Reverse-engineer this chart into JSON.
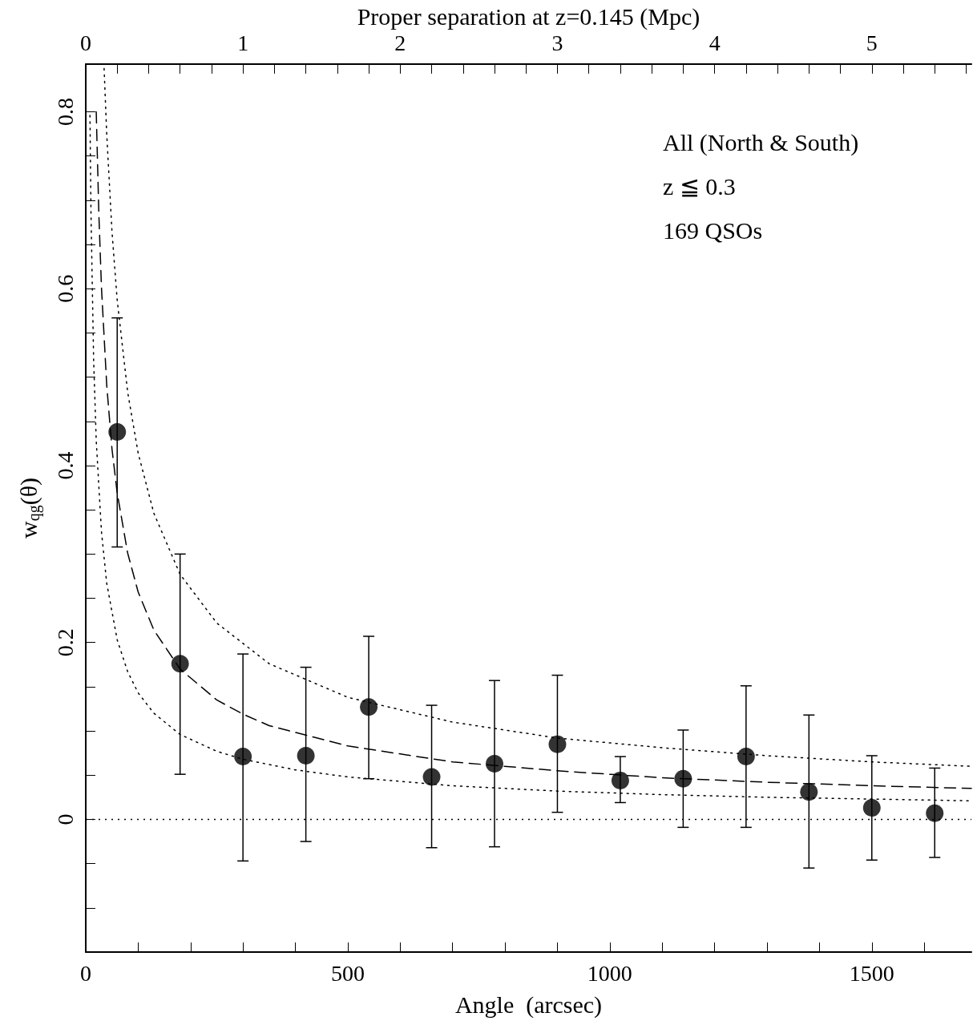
{
  "chart_data": {
    "type": "scatter",
    "xlabel": "Angle  (arcsec)",
    "ylabel": "w$_{qg}$(θ)",
    "x2label": "Proper separation at z=0.145 (Mpc)",
    "xlim": [
      0,
      1690
    ],
    "ylim": [
      -0.15,
      0.854
    ],
    "x2lim": [
      0,
      5.633
    ],
    "xticks": [
      0,
      {
        "value": 100,
        "label": null
      },
      {
        "value": 200,
        "label": null
      },
      {
        "value": 300,
        "label": null
      },
      {
        "value": 400,
        "label": null
      },
      500,
      {
        "value": 600,
        "label": null
      },
      {
        "value": 700,
        "label": null
      },
      {
        "value": 800,
        "label": null
      },
      {
        "value": 900,
        "label": null
      },
      1000,
      {
        "value": 1100,
        "label": null
      },
      {
        "value": 1200,
        "label": null
      },
      {
        "value": 1300,
        "label": null
      },
      {
        "value": 1400,
        "label": null
      },
      1500,
      {
        "value": 1600,
        "label": null
      }
    ],
    "x2ticks": [
      0,
      {
        "value": 0.2,
        "label": null
      },
      {
        "value": 0.4,
        "label": null
      },
      {
        "value": 0.6,
        "label": null
      },
      {
        "value": 0.8,
        "label": null
      },
      1,
      {
        "value": 1.2,
        "label": null
      },
      {
        "value": 1.4,
        "label": null
      },
      {
        "value": 1.6,
        "label": null
      },
      {
        "value": 1.8,
        "label": null
      },
      2,
      {
        "value": 2.2,
        "label": null
      },
      {
        "value": 2.4,
        "label": null
      },
      {
        "value": 2.6,
        "label": null
      },
      {
        "value": 2.8,
        "label": null
      },
      3,
      {
        "value": 3.2,
        "label": null
      },
      {
        "value": 3.4,
        "label": null
      },
      {
        "value": 3.6,
        "label": null
      },
      {
        "value": 3.8,
        "label": null
      },
      4,
      {
        "value": 4.2,
        "label": null
      },
      {
        "value": 4.4,
        "label": null
      },
      {
        "value": 4.6,
        "label": null
      },
      {
        "value": 4.8,
        "label": null
      },
      5,
      {
        "value": 5.2,
        "label": null
      },
      {
        "value": 5.4,
        "label": null
      },
      {
        "value": 5.6,
        "label": null
      }
    ],
    "yticks": [
      {
        "value": -0.1,
        "label": null
      },
      {
        "value": -0.05,
        "label": null
      },
      0,
      {
        "value": 0.05,
        "label": null
      },
      {
        "value": 0.1,
        "label": null
      },
      {
        "value": 0.15,
        "label": null
      },
      0.2,
      {
        "value": 0.25,
        "label": null
      },
      {
        "value": 0.3,
        "label": null
      },
      {
        "value": 0.35,
        "label": null
      },
      0.4,
      {
        "value": 0.45,
        "label": null
      },
      {
        "value": 0.5,
        "label": null
      },
      {
        "value": 0.55,
        "label": null
      },
      0.6,
      {
        "value": 0.65,
        "label": null
      },
      {
        "value": 0.7,
        "label": null
      },
      {
        "value": 0.75,
        "label": null
      },
      0.8
    ],
    "grid": false,
    "annotations": [
      "All (North & South)",
      "z ≦ 0.3",
      "169 QSOs"
    ],
    "ref_lines": [
      {
        "axis": "y",
        "value": 0,
        "line_style": "dotted",
        "color": "#000000"
      }
    ],
    "series": [
      {
        "marker": "circle",
        "color": "#000000",
        "x": [
          60,
          180,
          300,
          420,
          540,
          660,
          780,
          900,
          1020,
          1140,
          1260,
          1380,
          1500,
          1620
        ],
        "values": [
          0.438,
          0.176,
          0.071,
          0.072,
          0.127,
          0.048,
          0.063,
          0.085,
          0.044,
          0.046,
          0.071,
          0.031,
          0.013,
          0.007
        ],
        "errors": [
          [
            0.308,
            0.567
          ],
          [
            0.051,
            0.3
          ],
          [
            -0.047,
            0.187
          ],
          [
            -0.025,
            0.172
          ],
          [
            0.046,
            0.207
          ],
          [
            -0.032,
            0.129
          ],
          [
            -0.031,
            0.157
          ],
          [
            0.008,
            0.163
          ],
          [
            0.019,
            0.071
          ],
          [
            -0.009,
            0.101
          ],
          [
            -0.009,
            0.151
          ],
          [
            -0.055,
            0.118
          ],
          [
            -0.046,
            0.072
          ],
          [
            -0.043,
            0.058
          ]
        ]
      },
      {
        "type": "line",
        "marker": "none",
        "line_style": "dashed",
        "color": "#000000",
        "x": [
          20,
          25,
          30,
          40,
          50,
          60,
          80,
          100,
          130,
          180,
          250,
          300,
          350,
          500,
          700,
          900,
          1100,
          1300,
          1500,
          1690
        ],
        "values": [
          0.8,
          0.684,
          0.601,
          0.491,
          0.419,
          0.369,
          0.301,
          0.257,
          0.214,
          0.17,
          0.135,
          0.119,
          0.106,
          0.083,
          0.065,
          0.055,
          0.047,
          0.042,
          0.038,
          0.035
        ]
      },
      {
        "type": "line",
        "marker": "none",
        "line_style": "dotted",
        "color": "#000000",
        "x": [
          35,
          40,
          50,
          60,
          80,
          100,
          130,
          180,
          250,
          350,
          500,
          700,
          900,
          1100,
          1300,
          1500,
          1690
        ],
        "values": [
          0.849,
          0.775,
          0.665,
          0.587,
          0.483,
          0.414,
          0.346,
          0.277,
          0.222,
          0.176,
          0.138,
          0.11,
          0.092,
          0.081,
          0.072,
          0.065,
          0.06
        ]
      },
      {
        "type": "line",
        "marker": "none",
        "line_style": "dotted",
        "color": "#000000",
        "x": [
          8,
          10,
          15,
          20,
          30,
          40,
          60,
          80,
          100,
          130,
          180,
          250,
          300,
          400,
          500,
          700,
          900,
          1100,
          1300,
          1500,
          1690
        ],
        "values": [
          0.796,
          0.685,
          0.52,
          0.428,
          0.325,
          0.267,
          0.203,
          0.167,
          0.143,
          0.12,
          0.096,
          0.077,
          0.068,
          0.056,
          0.048,
          0.038,
          0.032,
          0.028,
          0.025,
          0.023,
          0.021
        ]
      }
    ]
  }
}
